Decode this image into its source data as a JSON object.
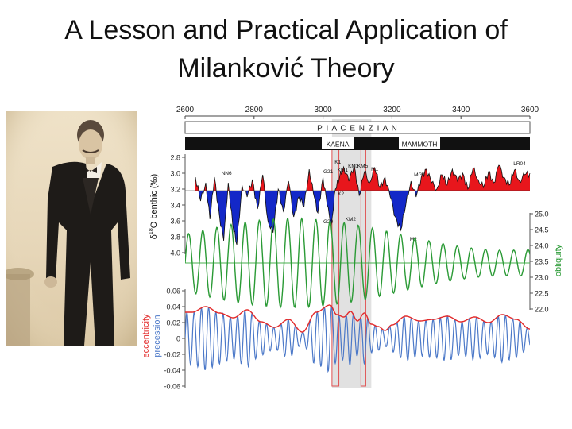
{
  "slide": {
    "title_line1": "A Lesson and Practical Application of",
    "title_line2": "Milanković Theory"
  },
  "photo": {
    "subject": "portrait-photo",
    "colors": {
      "sepia": "#e6d6b8",
      "suit": "#1e1b18"
    }
  },
  "chart_data": {
    "type": "line",
    "x_axis": {
      "ticks": [
        "2600",
        "2800",
        "3000",
        "3200",
        "3400",
        "3600"
      ],
      "range": [
        2600,
        3600
      ],
      "position": "top"
    },
    "stages": {
      "stage": "P I A C E N Z I A N",
      "chrons": [
        "KAENA",
        "MAMMOTH"
      ]
    },
    "highlight": {
      "band_x": [
        3026,
        3140
      ],
      "boxes": [
        [
          3026,
          3046
        ],
        [
          3110,
          3124
        ]
      ]
    },
    "panels": [
      {
        "name": "benthic",
        "ylabel": "δ18O benthic (‰)",
        "ylabel_sup": "18",
        "ylabel_pre": "δ",
        "ylabel_post": "O benthic (‰)",
        "yticks": [
          "2.8",
          "3.0",
          "3.2",
          "3.4",
          "3.6",
          "3.8",
          "4.0"
        ],
        "ylim": [
          2.8,
          4.0
        ],
        "baseline": 3.22,
        "colors": {
          "above": "#e8161c",
          "below": "#1328c8",
          "line": "#111111"
        },
        "annotations": [
          "NN6",
          "G21",
          "K1",
          "KM1",
          "KM3",
          "KM5",
          "M1",
          "MG1",
          "LR04",
          "K2",
          "G20",
          "KM2",
          "M2"
        ],
        "x": [
          2630,
          2645,
          2660,
          2672,
          2685,
          2700,
          2712,
          2725,
          2738,
          2750,
          2765,
          2780,
          2795,
          2810,
          2825,
          2840,
          2855,
          2870,
          2885,
          2900,
          2915,
          2930,
          2945,
          2960,
          2972,
          2985,
          3000,
          3012,
          3024,
          3036,
          3048,
          3060,
          3075,
          3090,
          3105,
          3120,
          3135,
          3150,
          3165,
          3180,
          3195,
          3210,
          3225,
          3240,
          3255,
          3270,
          3285,
          3300,
          3315,
          3330,
          3345,
          3360,
          3375,
          3390,
          3405,
          3420,
          3435,
          3450,
          3465,
          3480,
          3495,
          3510,
          3525,
          3540,
          3555,
          3570,
          3585,
          3600
        ],
        "values": [
          3.05,
          3.35,
          3.12,
          3.58,
          3.05,
          3.55,
          3.85,
          3.12,
          3.65,
          3.9,
          3.15,
          3.3,
          3.08,
          3.45,
          3.02,
          3.6,
          3.75,
          3.2,
          3.48,
          3.1,
          3.55,
          3.3,
          3.42,
          2.95,
          3.25,
          3.5,
          3.05,
          3.4,
          3.65,
          3.2,
          3.05,
          2.92,
          3.1,
          2.9,
          3.28,
          2.98,
          3.12,
          2.93,
          3.18,
          3.05,
          3.3,
          3.55,
          3.72,
          3.4,
          3.1,
          3.3,
          3.05,
          2.95,
          3.12,
          3.2,
          3.02,
          3.15,
          2.95,
          3.1,
          3.0,
          3.2,
          2.94,
          3.08,
          3.18,
          2.98,
          3.12,
          2.9,
          3.05,
          3.15,
          2.96,
          3.1,
          3.02,
          3.0
        ]
      },
      {
        "name": "obliquity",
        "ylabel": "obliquity",
        "yticks": [
          "25.0",
          "24.5",
          "24.0",
          "23.5",
          "23.0",
          "22.5",
          "22.0"
        ],
        "ylim": [
          22.0,
          25.0
        ],
        "mean": 23.45,
        "period_kyr": 41,
        "color": "#2a9a35",
        "mean_color": "#49b04f"
      },
      {
        "name": "orbital",
        "ylabels": [
          "eccentricity",
          "precession"
        ],
        "yticks": [
          "0.06",
          "0.04",
          "0.02",
          "0",
          "-0.02",
          "-0.04",
          "-0.06"
        ],
        "ylim": [
          -0.06,
          0.06
        ],
        "precession_period_kyr": 21,
        "colors": {
          "eccentricity": "#e32a2a",
          "precession": "#4b78c8"
        },
        "eccentricity_x": [
          2620,
          2660,
          2700,
          2740,
          2780,
          2820,
          2860,
          2900,
          2940,
          2980,
          3020,
          3040,
          3060,
          3080,
          3100,
          3120,
          3140,
          3160,
          3180,
          3200,
          3240,
          3280,
          3320,
          3360,
          3400,
          3440,
          3480,
          3520,
          3560,
          3600
        ],
        "eccentricity": [
          0.033,
          0.04,
          0.032,
          0.026,
          0.036,
          0.021,
          0.014,
          0.024,
          0.008,
          0.033,
          0.042,
          0.03,
          0.027,
          0.034,
          0.022,
          0.032,
          0.018,
          0.015,
          0.01,
          0.017,
          0.028,
          0.022,
          0.024,
          0.028,
          0.021,
          0.027,
          0.02,
          0.03,
          0.024,
          0.012
        ]
      }
    ]
  }
}
